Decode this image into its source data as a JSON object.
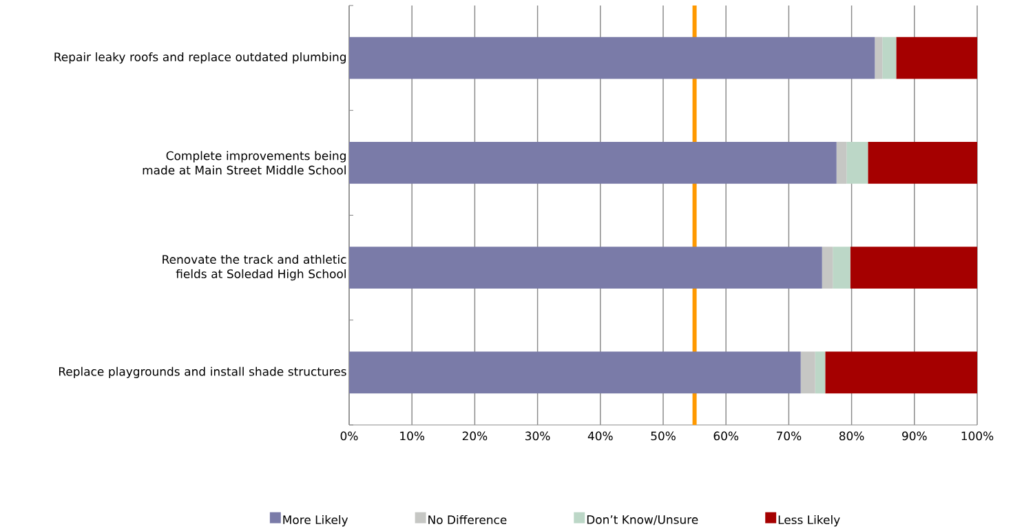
{
  "chart_data": {
    "type": "bar",
    "orientation": "horizontal",
    "stacked": true,
    "categories": [
      "Repair leaky roofs and replace outdated plumbing",
      "Complete improvements being made at Main Street Middle School",
      "Renovate the track and athletic fields at Soledad High School",
      "Replace playgrounds and install shade structures"
    ],
    "series": [
      {
        "name": "More Likely",
        "color": "#7a7ba8",
        "values": [
          83.7,
          77.6,
          75.3,
          71.9
        ]
      },
      {
        "name": "No Difference",
        "color": "#c6c7c4",
        "values": [
          1.2,
          1.6,
          1.7,
          2.3
        ]
      },
      {
        "name": "Don’t Know/Unsure",
        "color": "#bcd7c7",
        "values": [
          2.2,
          3.4,
          2.8,
          1.6
        ]
      },
      {
        "name": "Less Likely",
        "color": "#a50000",
        "values": [
          12.9,
          17.4,
          20.2,
          24.2
        ]
      }
    ],
    "xlim": [
      0,
      100
    ],
    "xticks": [
      {
        "value": 0,
        "label": "0%"
      },
      {
        "value": 10,
        "label": "10%"
      },
      {
        "value": 20,
        "label": "20%"
      },
      {
        "value": 30,
        "label": "30%"
      },
      {
        "value": 40,
        "label": "40%"
      },
      {
        "value": 50,
        "label": "50%"
      },
      {
        "value": 60,
        "label": "60%"
      },
      {
        "value": 70,
        "label": "70%"
      },
      {
        "value": 80,
        "label": "80%"
      },
      {
        "value": 90,
        "label": "90%"
      },
      {
        "value": 100,
        "label": "100%"
      }
    ],
    "ref_lines": [
      {
        "axis": "x",
        "value": 55,
        "color": "#ff9900"
      }
    ],
    "grid": "x",
    "legend": "bottom"
  }
}
